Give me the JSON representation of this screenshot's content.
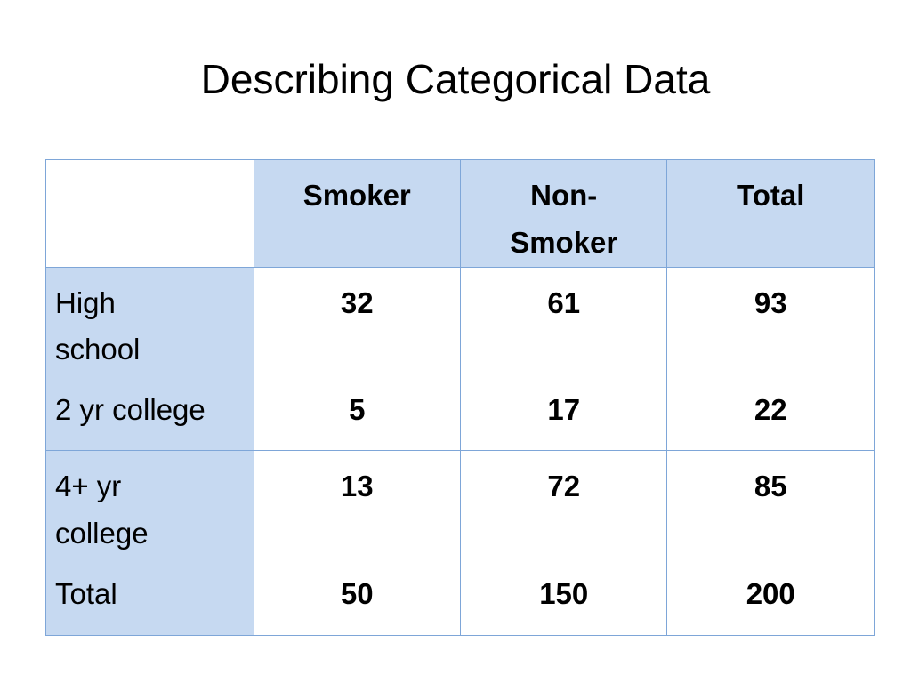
{
  "title": "Describing Categorical Data",
  "table": {
    "header": [
      "Smoker",
      "Non-Smoker",
      "Total"
    ],
    "rows": [
      [
        "High school",
        32,
        61,
        93
      ],
      [
        "2 yr college",
        5,
        17,
        22
      ],
      [
        "4+ yr college",
        13,
        72,
        85
      ],
      [
        "Total",
        50,
        150,
        200
      ]
    ]
  }
}
